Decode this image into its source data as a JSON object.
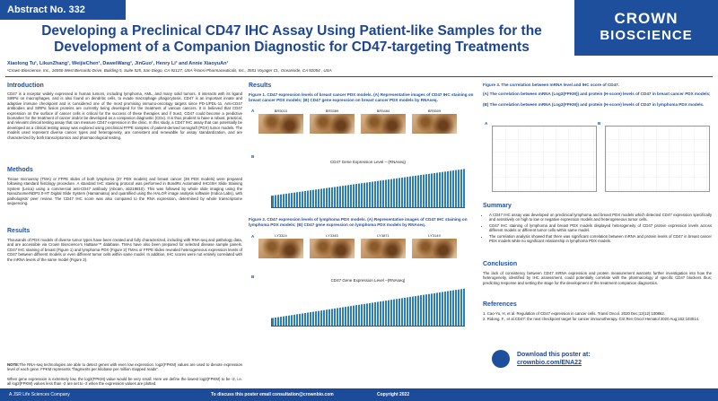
{
  "header": {
    "abstract_no": "Abstract No. 332",
    "title": "Developing a Preclinical CD47 IHC Assay Using Patient-like Samples for the Development of a Companion Diagnostic for CD47-targeting Treatments",
    "authors": "Xiaolong Tu¹, LikunZhang¹, WeijieChen¹, DaweiWang¹, JinGuo¹, Henry Li¹ and Annie XiaoyuAn¹",
    "affiliations": "¹Crown Bioscience, Inc., 16550 West Bernardo Drive, Building 5, Suite 525, San Diego, CA 92127, USA ²Hansi Pharmaceuticals, Inc., 3551 Voyager Ct., Oceanside, CA 92054 , USA",
    "logo": [
      "CROWN",
      "BIOSCIENCE"
    ]
  },
  "introduction": {
    "heading": "Introduction",
    "text": "CD47 is a receptor widely expressed in human tumors, including lymphoma, AML, and many solid tumors. It interacts with its ligand SIRPα on macrophages, and is also found on dendritic cells, to evade macrophage phagocytosis. CD47 is an important innate and adaptive immune checkpoint and is considered one of the most promising immuno-oncology targets since PD-1/PDL-11. Anti-CD47 antibodies and SIRPα fusion proteins are currently being developed for the treatment of various cancers. It is believed that CD47 expression on the surface of cancer cells is critical for the success of these therapies and if true2, CD47 could become a predictive biomarker for the treatment of cancer and/or be developed as a companion diagnostic (CDx). It is thus prudent to have a robust, practical, and relevant clinical testing assay that can measure CD47 expression in the clinic. In this study, a CD47 IHC assay that can potentially be developed as a clinical testing assay was explored using preclinical FFPE samples of patient-derived xenograft (PDX) tumor models. The models used represent diverse cancer types and heterogeneity, are consistent and renewable for assay standardization, and are characterized by both transcriptomics and pharmacological testing."
  },
  "methods": {
    "heading": "Methods",
    "text": "Tissue microarray (TMA) or FFPE slides of both lymphoma (37 PDX models) and breast cancer (38 PDX models) were prepared following standard histology procedure. A standard IHC staining protocol was performed in BondRx Automated IHC/ISH Slide Staining System (Leica) using a commercial anti-CD47 antibody (Abcam, ab218810). This was followed by whole slide imaging using the NanoZoomerNDP2.0-HT Digital Slide System (Hamamatsu) and quantified using the HALO® image analysis software (Indica Labs), with pathologists' peer review. The CD47 IHC score was also compared to the RNA expression, determined by whole transcriptome sequencing."
  },
  "results_left": {
    "heading": "Results",
    "text": "Thousands of PDX models of diverse tumor types have been created and fully characterized, including with RNA-seq and pathology data, and are accessible via Crown Bioscience's HuBase™ database. TMAs have also been prepared for selected disease sample panels. CD47 IHC staining of breast (Figure 1) and lymphoma PDX (Figure 2) TMAs or FFPE slides revealed heterogeneous expression levels of CD47 between different models or even different tumor cells within same model. In addition, IHC scores were not entirely correlated with the mRNA levels of the same model (Figure 3)."
  },
  "note": {
    "label": "NOTE:",
    "text": "The RNA-seq technologies are able to detect genes with even low expression. log2(FPKM) values are used to denote expression level of each gene: FPKM represents \"fragments per kilobase per million mapped reads\".",
    "text2": "When gene expression is extremely low, the log2(FPKM) value would be very small. Here we define the lowest log2(FPKM) to be -2, i.e. all log2(FPKM) values less than -2 are set to -2 when the expression values are plotted."
  },
  "results_mid": {
    "heading": "Results",
    "figure1": {
      "caption": "Figure 1. CD47 expression levels of breast cancer PDX models. (A) Representative images of CD47 IHC staining on breast cancer PDX models; (B) CD47 gene expression on breast cancer PDX models by RNAseq.",
      "panel_a": "A",
      "panel_b": "B",
      "images": [
        "BR5010",
        "BR5389",
        "BR5484",
        "BR5509"
      ],
      "chart_title": "CD47 Gene Expression Level – (RNAseq)"
    },
    "figure2": {
      "caption": "Figure 2. CD47 expression levels of lymphoma PDX models. (A) Representative images of CD47 IHC staining on lymphoma PDX models; (B) CD47 gene expression on lymphoma PDX models by RNAseq.",
      "panel_a": "A",
      "panel_b": "B",
      "images": [
        "LY3324",
        "LY3345",
        "LY3871",
        "LY3149"
      ],
      "chart_title": "CD47 Gene Expression Level –(RNAseq)"
    }
  },
  "figure3": {
    "title": "Figure 3. The correlation between mRNA level and IHC score of CD47.",
    "item_a": "(A) The correlation between mRNA (Log2(FPKM)) and protein (H-score) levels of CD47 in breast cancer PDX models;",
    "item_b": "(B) The correlation between mRNA (Log2(FPKM)) and protein (H-score) levels of CD47 in lymphoma PDX models.",
    "panel_a": "A",
    "panel_b": "B"
  },
  "summary": {
    "heading": "Summary",
    "bullets": [
      "A CD47 IHC assay was developed on preclinical lymphoma and breast PDX models which detected CD47 expression specifically and sensitively on high to low or negative expression models and heterogeneous tumor cells.",
      "CD47 IHC staining of lymphoma and breast PDX models displayed heterogeneity of CD47 protein expression levels across different models or different tumor cells within same model.",
      "The correlation analysis showed that there was significant correlation between mRNA and protein levels of CD47 in breast cancer PDX models while no significant relationship in lymphoma PDX models."
    ]
  },
  "conclusion": {
    "heading": "Conclusion",
    "text": "The lack of consistency between CD47 mRNA expression and protein measurement warrants further investigation into how the heterogeneity, identified by IHC assessment, could potentially correlate with the pharmacology of specific CD47 blockers thus; predicting response and setting the stage for the development of the treatment companion diagnostics."
  },
  "references": {
    "heading": "References",
    "items": [
      "1. Cao-Yu, H, et al. Regulation of CD47 expression in cancer cells. Transl Oncol. 2020 Dec;13(12):100862.",
      "2. Ridong, F., et al.CD47: the next checkpoint target for cancer immunotherapy. Crit Rev Oncol Hematol 2020 Aug;152:103014."
    ]
  },
  "download": {
    "label": "Download this poster at:",
    "url": "crownbio.com/ENA22"
  },
  "footer": {
    "company": "A JSR Life Sciences Company",
    "email": "To discuss this poster email consultation@crownbio.com",
    "copyright": "Copyright 2022"
  }
}
